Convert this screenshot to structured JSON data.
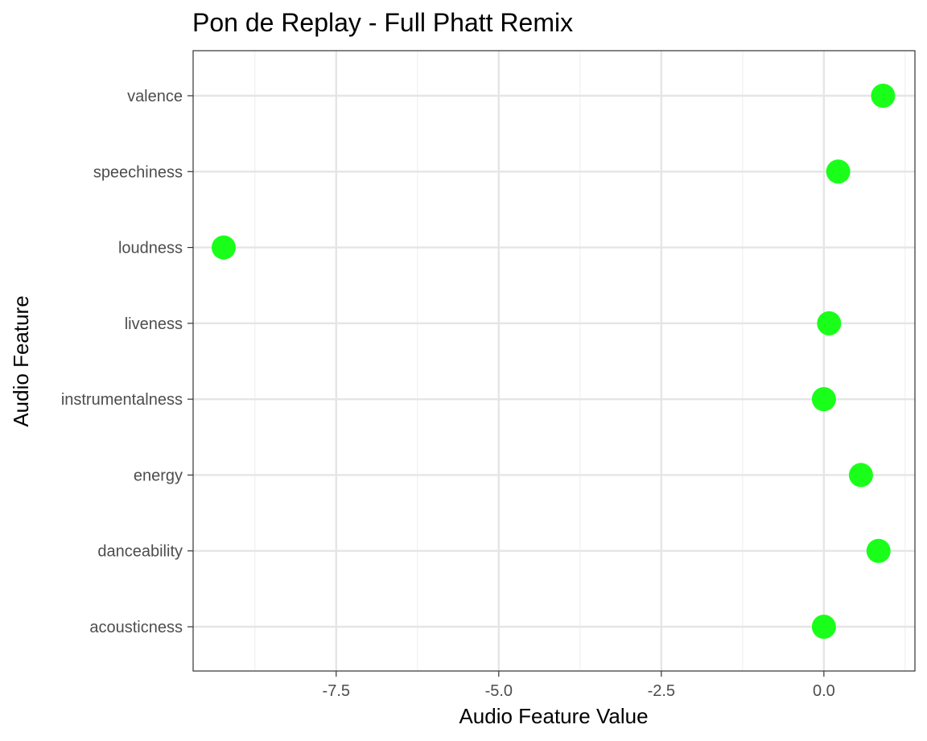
{
  "chart_data": {
    "type": "scatter",
    "title": "Pon de Replay - Full Phatt Remix",
    "xlabel": "Audio Feature Value",
    "ylabel": "Audio Feature",
    "categories": [
      "acousticness",
      "danceability",
      "energy",
      "instrumentalness",
      "liveness",
      "loudness",
      "speechiness",
      "valence"
    ],
    "values": [
      0.0,
      0.84,
      0.57,
      0.0,
      0.08,
      -9.23,
      0.22,
      0.91
    ],
    "xlim": [
      -9.7,
      1.4
    ],
    "x_ticks": [
      -7.5,
      -5.0,
      -2.5,
      0.0
    ],
    "x_tick_labels": [
      "-7.5",
      "-5.0",
      "-2.5",
      "0.0"
    ],
    "x_minor_ticks": [
      -8.75,
      -6.25,
      -3.75,
      -1.25,
      1.25
    ],
    "point_color": "#1aff1a",
    "grid": true,
    "legend": "none"
  }
}
